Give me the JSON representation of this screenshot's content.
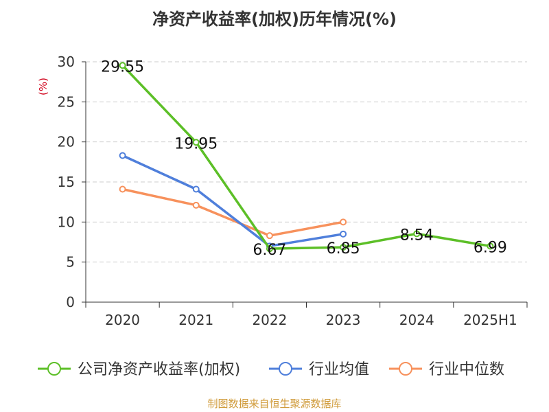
{
  "colors": {
    "company": "#5cbf27",
    "avg": "#4f7fdb",
    "median": "#f7915c",
    "source": "#d09b3a",
    "ylabel": "#d0021b",
    "grid": "#cccccc",
    "axis": "#333333"
  },
  "source_text": "制图数据来自恒生聚源数据库",
  "chart_data": {
    "type": "line",
    "title": "净资产收益率(加权)历年情况(%)",
    "ylabel": "(%)",
    "xlabel": "",
    "categories": [
      "2020",
      "2021",
      "2022",
      "2023",
      "2024",
      "2025H1"
    ],
    "ylim": [
      0,
      30
    ],
    "yticks": [
      0,
      5,
      10,
      15,
      20,
      25,
      30
    ],
    "grid": true,
    "legend_position": "bottom",
    "series": [
      {
        "name": "公司净资产收益率(加权)",
        "key": "company",
        "values": [
          29.55,
          19.95,
          6.67,
          6.85,
          8.54,
          6.99
        ],
        "labels": [
          "29.55",
          "19.95",
          "6.67",
          "6.85",
          "8.54",
          "6.99"
        ]
      },
      {
        "name": "行业均值",
        "key": "avg",
        "values": [
          18.3,
          14.1,
          7.0,
          8.5,
          null,
          null
        ]
      },
      {
        "name": "行业中位数",
        "key": "median",
        "values": [
          14.1,
          12.1,
          8.3,
          10.0,
          null,
          null
        ]
      }
    ]
  }
}
